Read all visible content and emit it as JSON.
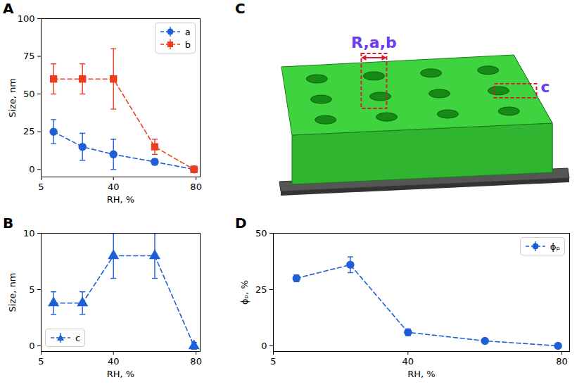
{
  "chart_data": [
    {
      "panel": "A",
      "type": "line",
      "xlabel": "RH, %",
      "ylabel": "Size, nm",
      "x": [
        11,
        25,
        40,
        60,
        79
      ],
      "xlim": [
        5,
        82
      ],
      "xticks": [
        5,
        40,
        80
      ],
      "ylim": [
        -5,
        100
      ],
      "yticks": [
        0,
        25,
        50,
        75,
        100
      ],
      "legend": "upper right",
      "line_style": "dashed",
      "series": [
        {
          "name": "a",
          "color": "#1f5fd6",
          "marker": "circle",
          "values": [
            25,
            15,
            10,
            5,
            0
          ],
          "errors": [
            8,
            9,
            10,
            2,
            0.5
          ]
        },
        {
          "name": "b",
          "color": "#f03c1e",
          "marker": "square",
          "values": [
            60,
            60,
            60,
            15,
            0
          ],
          "errors": [
            10,
            10,
            20,
            5,
            0.5
          ]
        }
      ]
    },
    {
      "panel": "B",
      "type": "line",
      "xlabel": "RH, %",
      "ylabel": "Size, nm",
      "x": [
        11,
        25,
        40,
        60,
        79
      ],
      "xlim": [
        5,
        82
      ],
      "xticks": [
        5,
        40,
        80
      ],
      "ylim": [
        -0.5,
        10
      ],
      "yticks": [
        0,
        5,
        10
      ],
      "legend": "lower left",
      "line_style": "dashed",
      "series": [
        {
          "name": "c",
          "color": "#1f5fd6",
          "marker": "triangle",
          "values": [
            3.8,
            3.8,
            8,
            8,
            0
          ],
          "errors": [
            1,
            1,
            2,
            2,
            0.3
          ]
        }
      ]
    },
    {
      "panel": "D",
      "type": "line",
      "xlabel": "RH, %",
      "ylabel": "ϕₚ, %",
      "x": [
        11,
        25,
        40,
        60,
        79
      ],
      "xlim": [
        5,
        82
      ],
      "xticks": [
        5,
        40,
        80
      ],
      "ylim": [
        -2.5,
        50
      ],
      "yticks": [
        0,
        25,
        50
      ],
      "legend": "upper right",
      "line_style": "dashed",
      "series": [
        {
          "name": "ϕₚ",
          "color": "#1f5fd6",
          "marker": "circle",
          "values": [
            30,
            36,
            6,
            2.2,
            0
          ],
          "errors": [
            1.5,
            3.5,
            1.5,
            0.5,
            0.3
          ]
        }
      ]
    }
  ],
  "diagram": {
    "panel": "C",
    "labels": [
      "R,a,b",
      "c"
    ]
  }
}
